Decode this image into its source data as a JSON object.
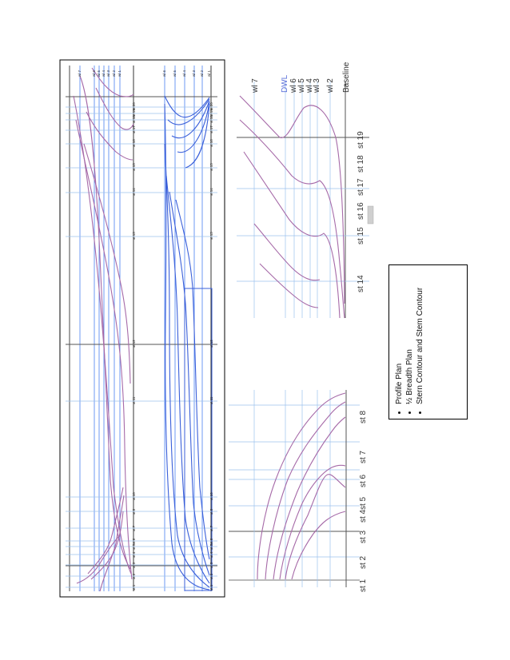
{
  "profile": {
    "stations": [
      "st 1",
      "st 2",
      "st 3",
      "st 4",
      "st 5",
      "st 6",
      "st 7",
      "st 8",
      "st 10",
      "st 11",
      "st 12",
      "st 13",
      "st 14",
      "st 15",
      "st 16",
      "st 17",
      "st 18",
      "st 19",
      "st 20"
    ],
    "waterlines": [
      "wl 7",
      "wl 6",
      "wl 5",
      "wl 4",
      "wl 3",
      "wl 2",
      "wl 1"
    ]
  },
  "halfbreadth": {
    "stations": [
      "st 1",
      "st 2",
      "st 3",
      "st 4",
      "st 5",
      "st 6",
      "st 7",
      "st 8",
      "st 10",
      "st 11",
      "st 12",
      "st 13",
      "st 14",
      "st 15",
      "st 16",
      "st 17",
      "st 18",
      "st 19",
      "st 20"
    ],
    "waterlines": [
      "wl 6",
      "wl 5",
      "wl 4",
      "wl 3",
      "wl 2",
      "wl 1"
    ]
  },
  "stern": {
    "waterlines": [
      "wl 7",
      "DWL",
      "wl 6",
      "wl 5",
      "wl 4",
      "wl 3",
      "wl 2",
      "Baseline"
    ],
    "stations": [
      "st 14",
      "st 15",
      "st 16",
      "st 17",
      "st 18",
      "st 19"
    ]
  },
  "bow": {
    "stations": [
      "st 1",
      "st 2",
      "st 3",
      "st 4",
      "st 5",
      "st 6",
      "st 7",
      "st 8"
    ]
  },
  "legend": {
    "items": [
      "Profile Plan",
      "½ Breadth Plan",
      "Stern Contour  and Stem Contour"
    ]
  }
}
